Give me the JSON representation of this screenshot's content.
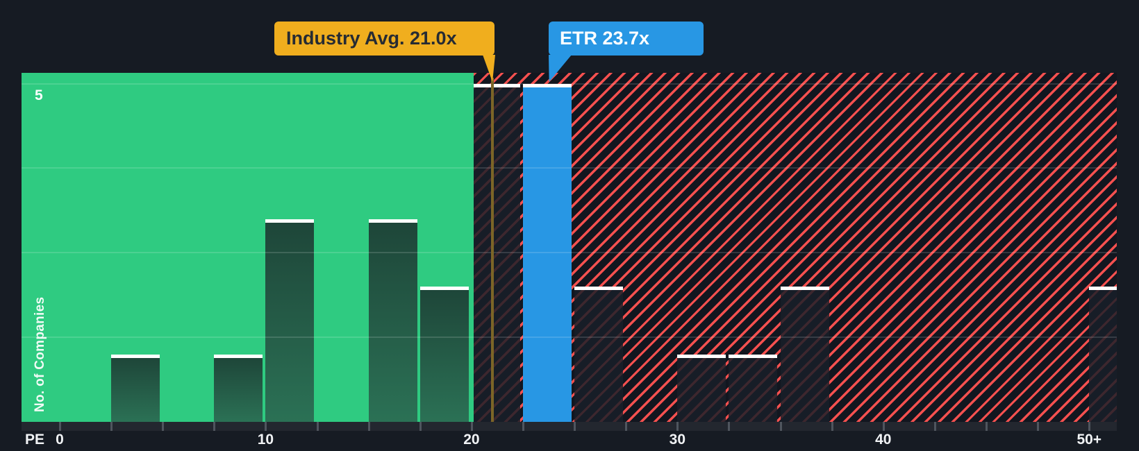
{
  "chart_data": {
    "type": "bar",
    "subtype": "histogram",
    "x_axis": {
      "title": "PE",
      "ticks": [
        {
          "label": "0",
          "pe": 0
        },
        {
          "label": "10",
          "pe": 10
        },
        {
          "label": "20",
          "pe": 20
        },
        {
          "label": "30",
          "pe": 30
        },
        {
          "label": "40",
          "pe": 40
        },
        {
          "label": "50+",
          "pe": 50
        }
      ],
      "minor_tick_step": 2.5,
      "bin_width": 2.5
    },
    "y_axis": {
      "title": "No. of Companies",
      "tick_label": "5",
      "max": 5,
      "grid_divisions": 4
    },
    "bins": [
      {
        "from": 0,
        "to": 2.5,
        "count": 0
      },
      {
        "from": 2.5,
        "to": 5,
        "count": 1
      },
      {
        "from": 5,
        "to": 7.5,
        "count": 0
      },
      {
        "from": 7.5,
        "to": 10,
        "count": 1
      },
      {
        "from": 10,
        "to": 12.5,
        "count": 3
      },
      {
        "from": 12.5,
        "to": 15,
        "count": 0
      },
      {
        "from": 15,
        "to": 17.5,
        "count": 3
      },
      {
        "from": 17.5,
        "to": 20,
        "count": 2
      },
      {
        "from": 20,
        "to": 22.5,
        "count": 5
      },
      {
        "from": 22.5,
        "to": 25,
        "count": 5,
        "company": true
      },
      {
        "from": 25,
        "to": 27.5,
        "count": 2
      },
      {
        "from": 27.5,
        "to": 30,
        "count": 0
      },
      {
        "from": 30,
        "to": 32.5,
        "count": 1
      },
      {
        "from": 32.5,
        "to": 35,
        "count": 1
      },
      {
        "from": 35,
        "to": 37.5,
        "count": 2
      },
      {
        "from": 37.5,
        "to": 40,
        "count": 0
      },
      {
        "from": 40,
        "to": 42.5,
        "count": 0
      },
      {
        "from": 42.5,
        "to": 45,
        "count": 0
      },
      {
        "from": 45,
        "to": 47.5,
        "count": 0
      },
      {
        "from": 47.5,
        "to": 50,
        "count": 0
      },
      {
        "from": 50,
        "to": 52.5,
        "count": 2,
        "clipped": true
      }
    ],
    "markers": {
      "industry_avg": {
        "label": "Industry Avg. 21.0x",
        "value": 21.0,
        "color": "#F0AE1E"
      },
      "company": {
        "label": "ETR 23.7x",
        "value": 23.7,
        "color": "#2897E4"
      }
    },
    "zones": {
      "fair": {
        "color": "#2FCB81",
        "pe_to": 20
      },
      "above_avg": {
        "hatch_color": "#F4504F",
        "background": "#12161F",
        "pe_from": 20
      }
    },
    "colors": {
      "background": "#161B23",
      "bar_top_stroke": "#FFFFFF",
      "dark_bar": "#191F29",
      "industry_line": "#7C6527",
      "axis_label": "#F1F3F5"
    },
    "grid": "on",
    "legend_position": "none"
  }
}
